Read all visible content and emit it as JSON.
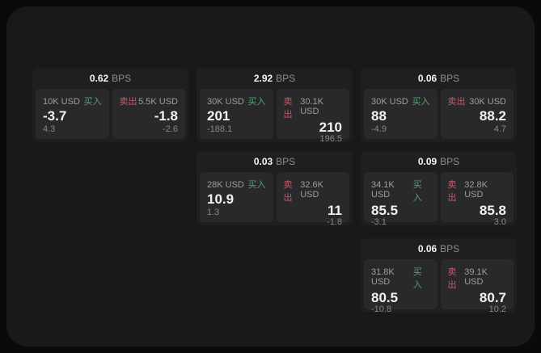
{
  "labels": {
    "bps_unit": "BPS",
    "buy": "买入",
    "sell": "卖出"
  },
  "colors": {
    "background": "#0a0a0b",
    "panel": "#19191b",
    "card": "#1f1f21",
    "quote_tile": "#29292b",
    "buy_accent": "#55a070",
    "sell_accent": "#c45b69",
    "price_text": "#f2f2f4",
    "muted_text": "#9d9da1"
  },
  "cards": [
    {
      "bps": "0.62",
      "buy": {
        "notional": "10K USD",
        "price": "-3.7",
        "sub": "4.3"
      },
      "sell": {
        "notional": "5.5K USD",
        "price": "-1.8",
        "sub": "-2.6"
      }
    },
    {
      "bps": "2.92",
      "buy": {
        "notional": "30K USD",
        "price": "201",
        "sub": "-188.1"
      },
      "sell": {
        "notional": "30.1K USD",
        "price": "210",
        "sub": "196.5"
      }
    },
    {
      "bps": "0.06",
      "buy": {
        "notional": "30K USD",
        "price": "88",
        "sub": "-4.9"
      },
      "sell": {
        "notional": "30K USD",
        "price": "88.2",
        "sub": "4.7"
      }
    },
    {
      "bps": "0.03",
      "buy": {
        "notional": "28K USD",
        "price": "10.9",
        "sub": "1.3"
      },
      "sell": {
        "notional": "32.6K USD",
        "price": "11",
        "sub": "-1.8"
      }
    },
    {
      "bps": "0.09",
      "buy": {
        "notional": "34.1K USD",
        "price": "85.5",
        "sub": "-3.1"
      },
      "sell": {
        "notional": "32.8K USD",
        "price": "85.8",
        "sub": "3.0"
      }
    },
    {
      "bps": "0.06",
      "buy": {
        "notional": "31.8K USD",
        "price": "80.5",
        "sub": "-10.8"
      },
      "sell": {
        "notional": "39.1K USD",
        "price": "80.7",
        "sub": "10.2"
      }
    }
  ]
}
